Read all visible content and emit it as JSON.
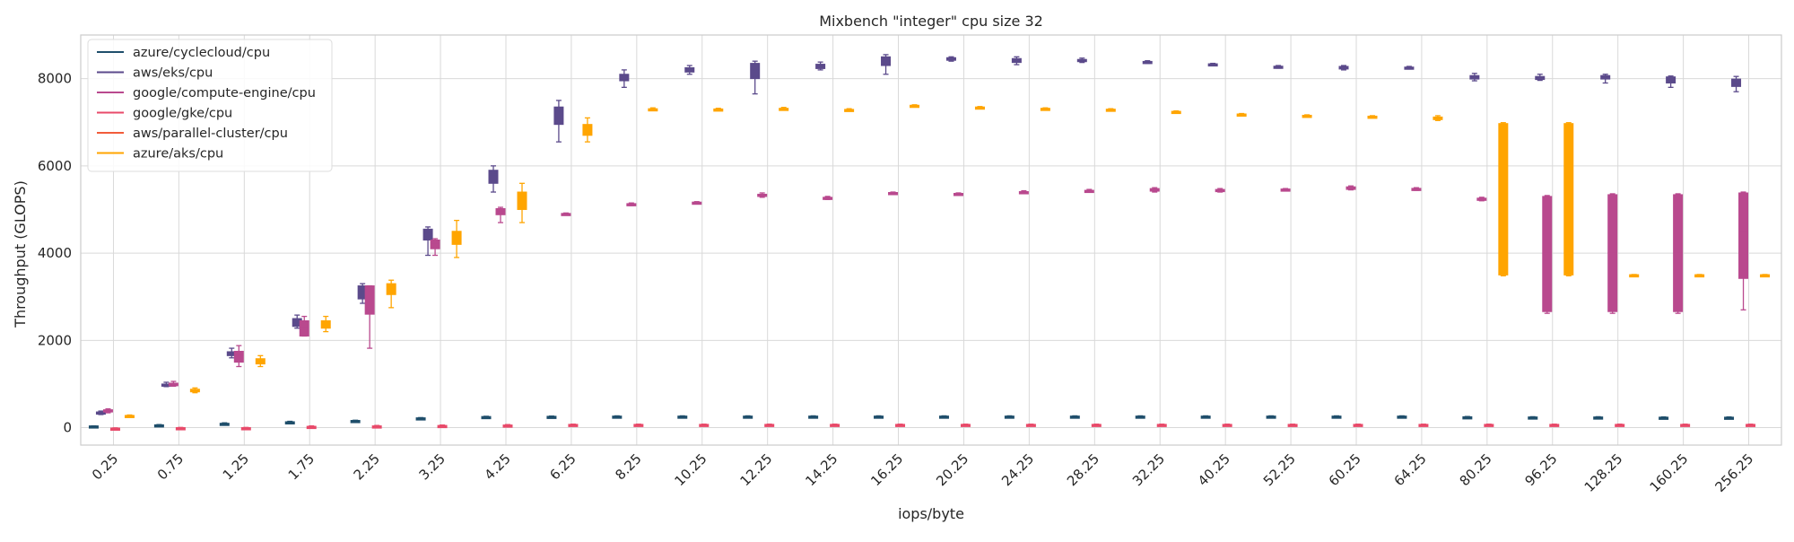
{
  "chart_data": {
    "type": "boxplot",
    "title": "Mixbench \"integer\" cpu size 32",
    "xlabel": "iops/byte",
    "ylabel": "Throughput (GLOPS)",
    "ylim": [
      -400,
      9000
    ],
    "yticks": [
      0,
      2000,
      4000,
      6000,
      8000
    ],
    "grid": true,
    "legend_position": "top-left",
    "categories": [
      "0.25",
      "0.75",
      "1.25",
      "1.75",
      "2.25",
      "3.25",
      "4.25",
      "6.25",
      "8.25",
      "10.25",
      "12.25",
      "14.25",
      "16.25",
      "20.25",
      "24.25",
      "28.25",
      "32.25",
      "40.25",
      "52.25",
      "60.25",
      "64.25",
      "80.25",
      "96.25",
      "128.25",
      "160.25",
      "256.25"
    ],
    "series": [
      {
        "name": "azure/cyclecloud/cpu",
        "color": "#1f4e6b",
        "boxes": [
          [
            30,
            20,
            30,
            40,
            40
          ],
          [
            55,
            45,
            55,
            65,
            70
          ],
          [
            90,
            80,
            90,
            100,
            110
          ],
          [
            125,
            115,
            125,
            135,
            145
          ],
          [
            155,
            145,
            155,
            165,
            170
          ],
          [
            215,
            205,
            215,
            225,
            230
          ],
          [
            245,
            235,
            245,
            255,
            260
          ],
          [
            250,
            240,
            250,
            260,
            265
          ],
          [
            255,
            245,
            255,
            265,
            270
          ],
          [
            255,
            245,
            255,
            265,
            270
          ],
          [
            255,
            245,
            255,
            265,
            270
          ],
          [
            255,
            245,
            255,
            265,
            270
          ],
          [
            255,
            245,
            255,
            265,
            270
          ],
          [
            255,
            245,
            255,
            265,
            270
          ],
          [
            255,
            245,
            255,
            265,
            270
          ],
          [
            255,
            245,
            255,
            265,
            270
          ],
          [
            255,
            245,
            255,
            265,
            270
          ],
          [
            255,
            245,
            255,
            265,
            270
          ],
          [
            255,
            245,
            255,
            265,
            270
          ],
          [
            255,
            245,
            255,
            265,
            270
          ],
          [
            255,
            245,
            255,
            265,
            270
          ],
          [
            240,
            230,
            240,
            250,
            255
          ],
          [
            235,
            225,
            235,
            245,
            250
          ],
          [
            235,
            225,
            235,
            245,
            250
          ],
          [
            230,
            220,
            230,
            240,
            245
          ],
          [
            230,
            220,
            230,
            240,
            245
          ]
        ]
      },
      {
        "name": "aws/eks/cpu",
        "color": "#5b4a8b",
        "boxes": [
          [
            300,
            320,
            340,
            360,
            380
          ],
          [
            940,
            960,
            980,
            1000,
            1040
          ],
          [
            1600,
            1650,
            1700,
            1740,
            1820
          ],
          [
            2280,
            2320,
            2400,
            2500,
            2580
          ],
          [
            2850,
            2950,
            3150,
            3250,
            3300
          ],
          [
            3950,
            4300,
            4450,
            4550,
            4600
          ],
          [
            5400,
            5600,
            5800,
            5900,
            6000
          ],
          [
            6550,
            6950,
            7250,
            7350,
            7500
          ],
          [
            7800,
            7950,
            8050,
            8100,
            8200
          ],
          [
            8100,
            8150,
            8200,
            8250,
            8300
          ],
          [
            7650,
            8000,
            8200,
            8350,
            8400
          ],
          [
            8200,
            8230,
            8280,
            8330,
            8380
          ],
          [
            8100,
            8300,
            8400,
            8500,
            8550
          ],
          [
            8400,
            8420,
            8450,
            8480,
            8500
          ],
          [
            8320,
            8370,
            8420,
            8460,
            8500
          ],
          [
            8370,
            8390,
            8410,
            8440,
            8470
          ],
          [
            8350,
            8365,
            8380,
            8395,
            8410
          ],
          [
            8310,
            8320,
            8330,
            8340,
            8350
          ],
          [
            8240,
            8255,
            8270,
            8285,
            8300
          ],
          [
            8200,
            8220,
            8250,
            8280,
            8300
          ],
          [
            8220,
            8235,
            8250,
            8265,
            8280
          ],
          [
            7950,
            7990,
            8030,
            8070,
            8120
          ],
          [
            7960,
            7980,
            8010,
            8050,
            8100
          ],
          [
            7900,
            7990,
            8030,
            8070,
            8100
          ],
          [
            7800,
            7900,
            7970,
            8040,
            8060
          ],
          [
            7700,
            7820,
            7900,
            7990,
            8050
          ]
        ]
      },
      {
        "name": "google/compute-engine/cpu",
        "color": "#b9498e",
        "boxes": [
          [
            340,
            360,
            390,
            410,
            430
          ],
          [
            950,
            960,
            990,
            1020,
            1060
          ],
          [
            1400,
            1500,
            1650,
            1750,
            1880
          ],
          [
            2100,
            2100,
            2300,
            2450,
            2550
          ],
          [
            1820,
            2600,
            3100,
            3250,
            3250
          ],
          [
            3950,
            4100,
            4200,
            4300,
            4330
          ],
          [
            4700,
            4880,
            4950,
            5020,
            5050
          ],
          [
            4880,
            4890,
            4900,
            4910,
            4920
          ],
          [
            5090,
            5105,
            5120,
            5135,
            5150
          ],
          [
            5140,
            5150,
            5160,
            5170,
            5180
          ],
          [
            5280,
            5300,
            5320,
            5350,
            5380
          ],
          [
            5230,
            5240,
            5260,
            5280,
            5300
          ],
          [
            5360,
            5370,
            5380,
            5390,
            5400
          ],
          [
            5340,
            5350,
            5360,
            5370,
            5380
          ],
          [
            5370,
            5380,
            5400,
            5410,
            5430
          ],
          [
            5410,
            5420,
            5430,
            5440,
            5460
          ],
          [
            5400,
            5420,
            5450,
            5480,
            5500
          ],
          [
            5400,
            5420,
            5440,
            5460,
            5480
          ],
          [
            5440,
            5450,
            5460,
            5470,
            5480
          ],
          [
            5450,
            5460,
            5490,
            5520,
            5540
          ],
          [
            5440,
            5455,
            5470,
            5485,
            5500
          ],
          [
            5200,
            5220,
            5240,
            5260,
            5280
          ],
          [
            2620,
            2660,
            4000,
            5300,
            5320
          ],
          [
            2620,
            2660,
            4000,
            5340,
            5360
          ],
          [
            2620,
            2660,
            4000,
            5340,
            5360
          ],
          [
            2700,
            3420,
            4500,
            5380,
            5400
          ]
        ]
      },
      {
        "name": "google/gke/cpu",
        "color": "#e84a6a",
        "boxes": [
          [
            -30,
            -20,
            -15,
            -10,
            -5
          ],
          [
            -20,
            -10,
            -5,
            0,
            5
          ],
          [
            -20,
            -10,
            -5,
            0,
            5
          ],
          [
            10,
            20,
            25,
            30,
            40
          ],
          [
            20,
            30,
            35,
            40,
            50
          ],
          [
            30,
            40,
            45,
            50,
            60
          ],
          [
            40,
            50,
            55,
            60,
            70
          ],
          [
            60,
            65,
            70,
            75,
            80
          ],
          [
            60,
            65,
            70,
            75,
            80
          ],
          [
            60,
            65,
            70,
            75,
            80
          ],
          [
            60,
            65,
            70,
            75,
            80
          ],
          [
            60,
            65,
            70,
            75,
            80
          ],
          [
            60,
            65,
            70,
            75,
            80
          ],
          [
            60,
            65,
            70,
            75,
            80
          ],
          [
            60,
            65,
            70,
            75,
            80
          ],
          [
            60,
            65,
            70,
            75,
            80
          ],
          [
            60,
            65,
            70,
            75,
            80
          ],
          [
            60,
            65,
            70,
            75,
            80
          ],
          [
            60,
            65,
            70,
            75,
            80
          ],
          [
            60,
            65,
            70,
            75,
            80
          ],
          [
            60,
            65,
            70,
            75,
            80
          ],
          [
            60,
            65,
            70,
            75,
            80
          ],
          [
            60,
            65,
            70,
            75,
            80
          ],
          [
            60,
            65,
            70,
            75,
            80
          ],
          [
            60,
            65,
            70,
            75,
            80
          ],
          [
            60,
            65,
            70,
            75,
            80
          ]
        ]
      },
      {
        "name": "aws/parallel-cluster/cpu",
        "color": "#f25c3a",
        "boxes": []
      },
      {
        "name": "azure/aks/cpu",
        "color": "#ffa500",
        "boxes": [
          [
            240,
            250,
            265,
            280,
            290
          ],
          [
            800,
            820,
            850,
            880,
            910
          ],
          [
            1400,
            1460,
            1520,
            1580,
            1650
          ],
          [
            2200,
            2280,
            2380,
            2450,
            2550
          ],
          [
            2750,
            3050,
            3200,
            3300,
            3380
          ],
          [
            3900,
            4200,
            4350,
            4500,
            4750
          ],
          [
            4700,
            5000,
            5200,
            5400,
            5600
          ],
          [
            6550,
            6700,
            6850,
            6950,
            7100
          ],
          [
            7270,
            7280,
            7300,
            7310,
            7330
          ],
          [
            7270,
            7280,
            7295,
            7305,
            7320
          ],
          [
            7290,
            7300,
            7310,
            7320,
            7340
          ],
          [
            7260,
            7270,
            7285,
            7295,
            7310
          ],
          [
            7360,
            7370,
            7380,
            7390,
            7400
          ],
          [
            7320,
            7330,
            7340,
            7350,
            7360
          ],
          [
            7290,
            7300,
            7310,
            7320,
            7330
          ],
          [
            7270,
            7280,
            7290,
            7300,
            7310
          ],
          [
            7220,
            7230,
            7240,
            7250,
            7260
          ],
          [
            7160,
            7170,
            7180,
            7190,
            7200
          ],
          [
            7130,
            7140,
            7150,
            7160,
            7170
          ],
          [
            7110,
            7120,
            7130,
            7140,
            7150
          ],
          [
            7040,
            7060,
            7090,
            7120,
            7150
          ],
          [
            3480,
            3500,
            6900,
            6970,
            6990
          ],
          [
            3480,
            3500,
            6900,
            6970,
            6990
          ],
          [
            3490,
            3495,
            3500,
            3505,
            3510
          ],
          [
            3490,
            3495,
            3500,
            3505,
            3510
          ],
          [
            3490,
            3495,
            3500,
            3505,
            3510
          ]
        ]
      }
    ]
  }
}
